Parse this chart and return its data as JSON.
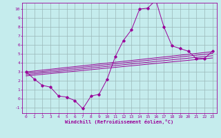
{
  "xlabel": "Windchill (Refroidissement éolien,°C)",
  "bg_color": "#c5eced",
  "line_color": "#990099",
  "grid_color": "#9ab8b8",
  "xlim": [
    -0.5,
    23.5
  ],
  "ylim": [
    -1.6,
    10.7
  ],
  "xticks": [
    0,
    1,
    2,
    3,
    4,
    5,
    6,
    7,
    8,
    9,
    10,
    11,
    12,
    13,
    14,
    15,
    16,
    17,
    18,
    19,
    20,
    21,
    22,
    23
  ],
  "yticks": [
    -1,
    0,
    1,
    2,
    3,
    4,
    5,
    6,
    7,
    8,
    9,
    10
  ],
  "main_x": [
    0,
    1,
    2,
    3,
    4,
    5,
    6,
    7,
    8,
    9,
    10,
    11,
    12,
    13,
    14,
    15,
    16,
    17,
    18,
    19,
    20,
    21,
    22,
    23
  ],
  "main_y": [
    3.0,
    2.2,
    1.5,
    1.3,
    0.3,
    0.2,
    -0.2,
    -1.1,
    0.3,
    0.5,
    2.2,
    4.7,
    6.5,
    7.7,
    10.0,
    10.1,
    11.0,
    8.0,
    5.9,
    5.6,
    5.3,
    4.5,
    4.5,
    5.3
  ],
  "reg_lines": [
    {
      "x0": 0,
      "y0": 2.55,
      "x1": 23,
      "y1": 4.55
    },
    {
      "x0": 0,
      "y0": 2.7,
      "x1": 23,
      "y1": 4.8
    },
    {
      "x0": 0,
      "y0": 2.85,
      "x1": 23,
      "y1": 5.05
    },
    {
      "x0": 0,
      "y0": 3.0,
      "x1": 23,
      "y1": 5.25
    }
  ]
}
